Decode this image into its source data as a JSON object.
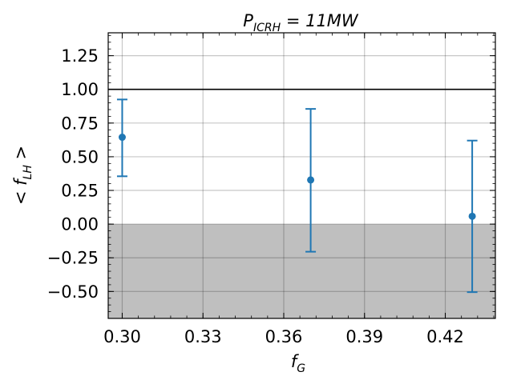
{
  "chart_data": {
    "type": "scatter",
    "title": "P_ICRH = 11MW",
    "title_main": "P",
    "title_sub": "ICRH",
    "title_rest": " = 11MW",
    "xlabel": "f_G",
    "xlabel_main": "f",
    "xlabel_sub": "G",
    "ylabel": "< f_LH >",
    "ylabel_left": "< f",
    "ylabel_sub": "LH",
    "ylabel_right": " >",
    "xlim": [
      0.2948,
      0.4386
    ],
    "ylim": [
      -0.7,
      1.42
    ],
    "x_ticks": [
      0.3,
      0.33,
      0.36,
      0.39,
      0.42
    ],
    "x_tick_labels": [
      "0.30",
      "0.33",
      "0.36",
      "0.39",
      "0.42"
    ],
    "y_ticks": [
      -0.5,
      -0.25,
      0.0,
      0.25,
      0.5,
      0.75,
      1.0,
      1.25
    ],
    "y_tick_labels": [
      "−0.50",
      "−0.25",
      "0.00",
      "0.25",
      "0.50",
      "0.75",
      "1.00",
      "1.25"
    ],
    "grid": true,
    "reference_line_y": 1.0,
    "shaded_region": {
      "y_from": -0.7,
      "y_to": 0.0,
      "color": "#808080"
    },
    "series": [
      {
        "color": "#1f77b4",
        "x": [
          0.3,
          0.37,
          0.43
        ],
        "y": [
          0.645,
          0.328,
          0.058
        ],
        "y_lower": [
          0.355,
          -0.205,
          -0.505
        ],
        "y_upper": [
          0.925,
          0.855,
          0.62
        ]
      }
    ]
  }
}
